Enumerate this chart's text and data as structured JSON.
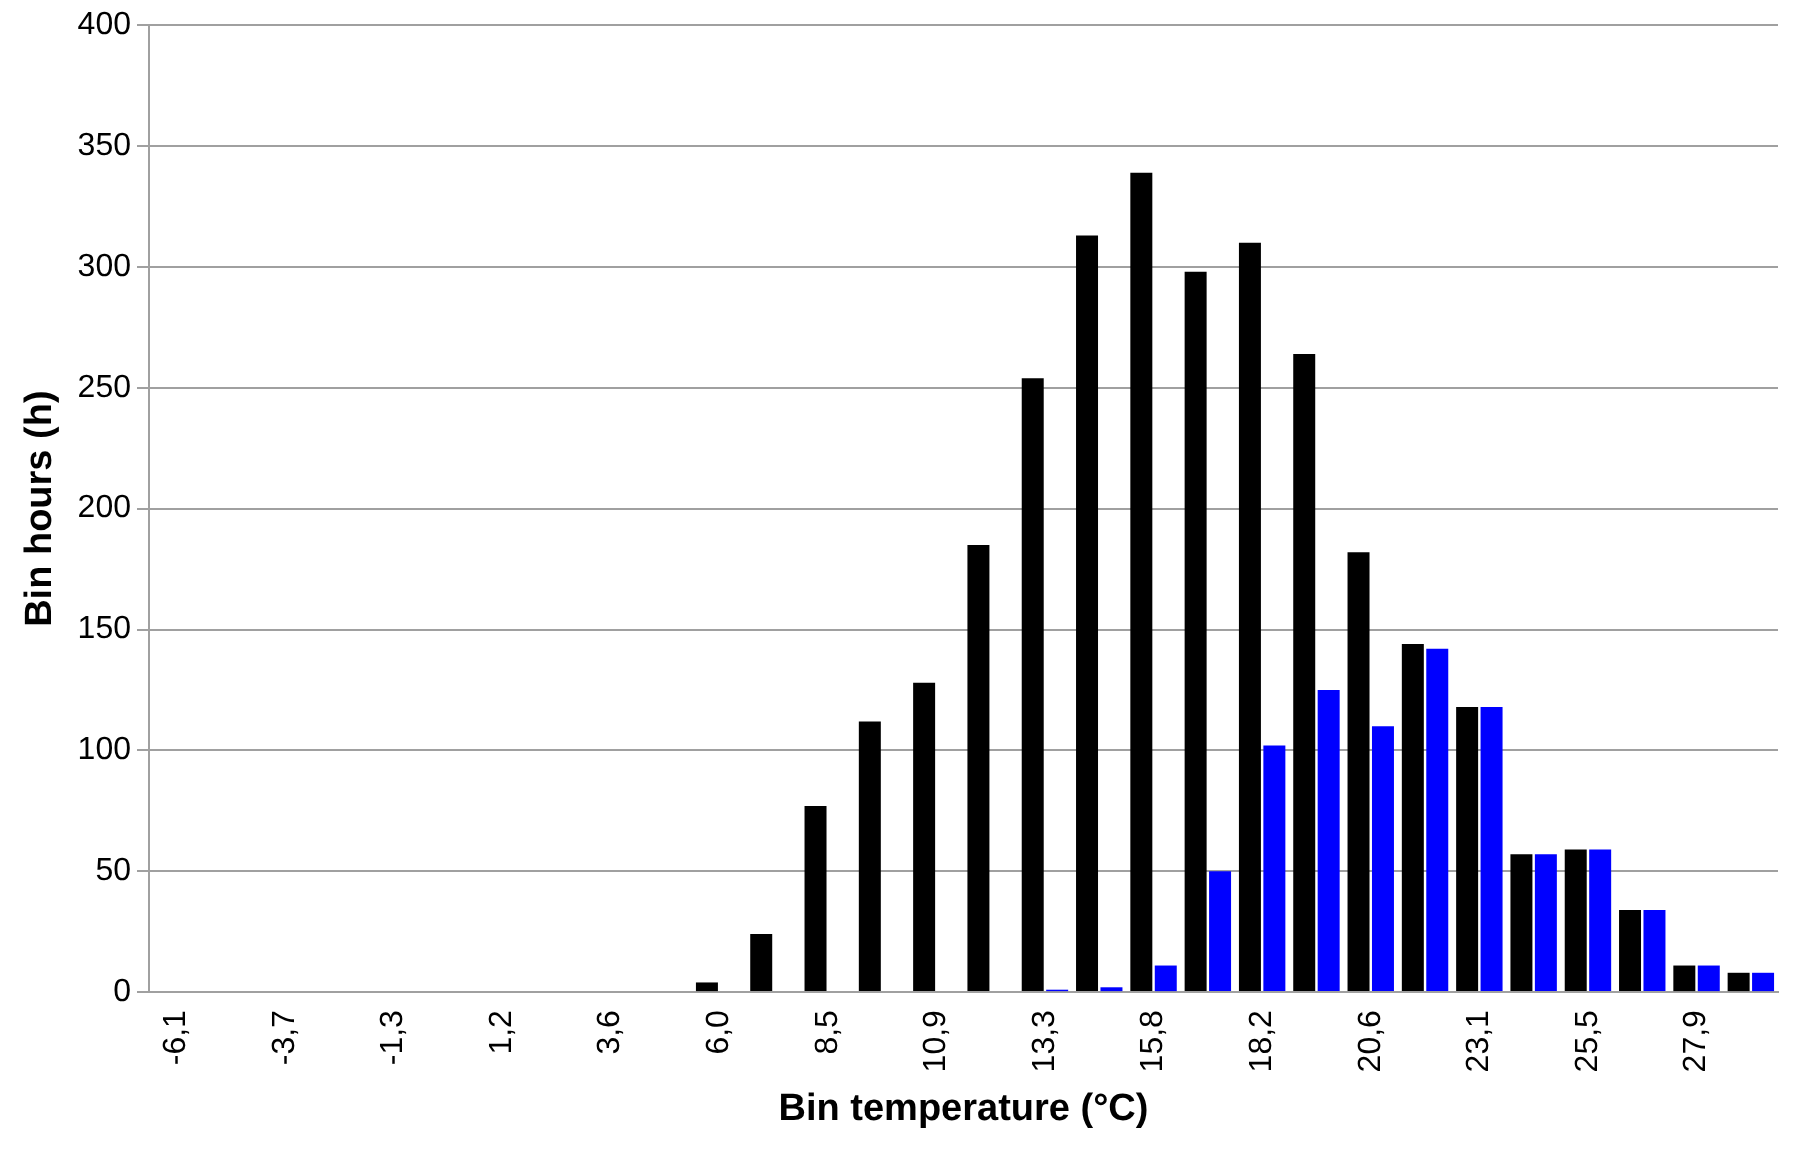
{
  "chart_data": {
    "type": "bar",
    "xlabel": "Bin temperature (°C)",
    "ylabel": "Bin hours (h)",
    "categories": [
      "-6,1",
      null,
      "-3,7",
      null,
      "-1,3",
      null,
      "1,2",
      null,
      "3,6",
      null,
      "6,0",
      null,
      "8,5",
      null,
      "10,9",
      null,
      "13,3",
      null,
      "15,8",
      null,
      "18,2",
      null,
      "20,6",
      null,
      "23,1",
      null,
      "25,5",
      null,
      "27,9",
      null
    ],
    "series": [
      {
        "color": "#000000",
        "values": [
          0,
          0,
          0,
          0,
          0,
          0,
          0,
          0,
          0,
          0,
          4,
          24,
          77,
          112,
          128,
          185,
          254,
          313,
          339,
          298,
          310,
          264,
          182,
          144,
          118,
          57,
          59,
          34,
          11,
          8
        ]
      },
      {
        "color": "#0000ff",
        "values": [
          0,
          0,
          0,
          0,
          0,
          0,
          0,
          0,
          0,
          0,
          0,
          0,
          0,
          0,
          0,
          0,
          1,
          2,
          11,
          50,
          102,
          125,
          110,
          142,
          118,
          57,
          59,
          34,
          11,
          8
        ]
      }
    ],
    "ylim": [
      0,
      400
    ],
    "yticks": [
      0,
      50,
      100,
      150,
      200,
      250,
      300,
      350,
      400
    ],
    "grid": "y",
    "legend": false
  }
}
